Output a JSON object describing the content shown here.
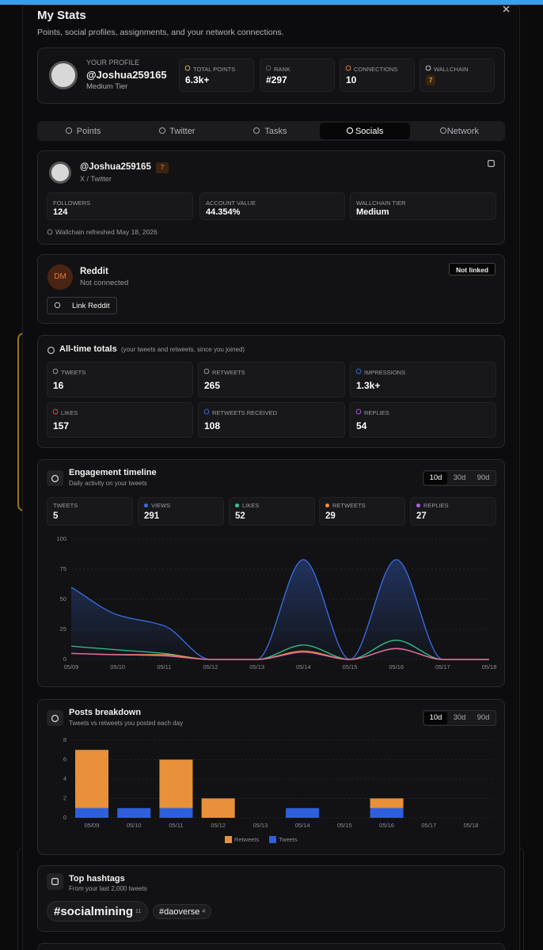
{
  "header": {
    "title": "My Stats",
    "subtitle": "Points, social profiles, assignments, and your network connections."
  },
  "profile": {
    "label": "YOUR PROFILE",
    "handle": "@Joshua259165",
    "tier": "Medium Tier",
    "stats": [
      {
        "label": "TOTAL POINTS",
        "value": "6.3k+"
      },
      {
        "label": "RANK",
        "value": "#297"
      },
      {
        "label": "CONNECTIONS",
        "value": 10
      },
      {
        "label": "WALLCHAIN",
        "value": 7
      }
    ]
  },
  "tabs": {
    "items": [
      "Points",
      "Twitter",
      "Tasks",
      "Socials",
      "Network"
    ],
    "active": 3
  },
  "twitter": {
    "handle": "@Joshua259165",
    "badge": 7,
    "platform": "X / Twitter",
    "stats": [
      {
        "label": "FOLLOWERS",
        "value": 124
      },
      {
        "label": "ACCOUNT VALUE",
        "value": "44.354%"
      },
      {
        "label": "WALLCHAIN TIER",
        "value": "Medium"
      }
    ],
    "refreshed": "Wallchain refreshed May 18, 2026"
  },
  "reddit": {
    "avatar": "DM",
    "name": "Reddit",
    "status": "Not connected",
    "badge": "Not linked",
    "button": "Link Reddit"
  },
  "totals": {
    "title": "All-time totals",
    "note": "(your tweets and retweets, since you joined)",
    "stats": [
      {
        "label": "TWEETS",
        "value": 16
      },
      {
        "label": "RETWEETS",
        "value": 265
      },
      {
        "label": "IMPRESSIONS",
        "value": "1.3k+"
      },
      {
        "label": "LIKES",
        "value": 157
      },
      {
        "label": "RETWEETS RECEIVED",
        "value": 108
      },
      {
        "label": "REPLIES",
        "value": 54
      }
    ]
  },
  "chart_data": [
    {
      "type": "line",
      "title": "Engagement timeline",
      "subtitle": "Daily activity on your tweets",
      "ranges": [
        "10d",
        "30d",
        "90d"
      ],
      "active_range": 0,
      "summary": [
        {
          "label": "TWEETS",
          "value": 5
        },
        {
          "label": "VIEWS",
          "value": 291
        },
        {
          "label": "LIKES",
          "value": 52
        },
        {
          "label": "RETWEETS",
          "value": 29
        },
        {
          "label": "REPLIES",
          "value": 27
        }
      ],
      "categories": [
        "05/09",
        "05/10",
        "05/11",
        "05/12",
        "05/13",
        "05/14",
        "05/15",
        "05/16",
        "05/17",
        "05/18"
      ],
      "series": [
        {
          "name": "Views",
          "color": "#3b6fe6",
          "fill": true,
          "values": [
            60,
            37,
            28,
            0,
            0,
            83,
            0,
            83,
            0,
            0
          ]
        },
        {
          "name": "Likes",
          "color": "#35c48d",
          "fill": false,
          "values": [
            11,
            8,
            5,
            0,
            0,
            12,
            0,
            16,
            0,
            0
          ]
        },
        {
          "name": "Retweets",
          "color": "#f0903a",
          "fill": false,
          "values": [
            5,
            4,
            4,
            0,
            0,
            7,
            0,
            9,
            0,
            0
          ]
        },
        {
          "name": "Replies",
          "color": "#e2709e",
          "fill": false,
          "values": [
            5,
            4,
            3,
            0,
            0,
            6,
            0,
            9,
            0,
            0
          ]
        }
      ],
      "ylim": [
        0,
        100
      ],
      "yticks": [
        0,
        25,
        50,
        75,
        100
      ],
      "grid": true
    },
    {
      "type": "bar",
      "stacked": true,
      "title": "Posts breakdown",
      "subtitle": "Tweets vs retweets you posted each day",
      "ranges": [
        "10d",
        "30d",
        "90d"
      ],
      "active_range": 0,
      "categories": [
        "05/09",
        "05/10",
        "05/11",
        "05/12",
        "05/13",
        "05/14",
        "05/15",
        "05/16",
        "05/17",
        "05/18"
      ],
      "series": [
        {
          "name": "Retweets",
          "color": "#e8913a",
          "values": [
            6,
            0,
            5,
            2,
            0,
            0,
            0,
            1,
            0,
            0
          ]
        },
        {
          "name": "Tweets",
          "color": "#2e60dc",
          "values": [
            1,
            1,
            1,
            0,
            0,
            1,
            0,
            1,
            0,
            0
          ]
        }
      ],
      "ylim": [
        0,
        8
      ],
      "yticks": [
        0,
        2,
        4,
        6,
        8
      ],
      "grid": true
    }
  ],
  "hashtags": {
    "title": "Top hashtags",
    "subtitle": "From your last 2,000 tweets",
    "items": [
      {
        "tag": "#socialmining",
        "count": 11
      },
      {
        "tag": "#daoverse",
        "count": 4
      }
    ]
  }
}
